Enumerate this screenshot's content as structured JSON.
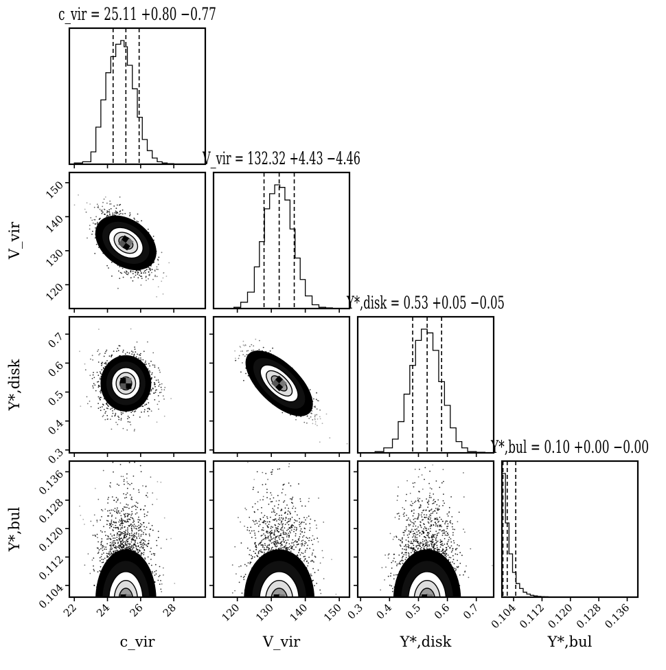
{
  "chart_data": {
    "type": "corner",
    "parameters": [
      {
        "key": "c_vir",
        "label": "c_vir",
        "title": "c_vir = 25.11 +0.80 −0.77",
        "median": 25.11,
        "err_plus": 0.8,
        "err_minus": 0.77,
        "range": [
          21.7,
          29.9
        ],
        "ticks": [
          22,
          24,
          26,
          28
        ],
        "tick_labels": [
          "22",
          "24",
          "26",
          "28"
        ],
        "quantile_lines": [
          24.34,
          25.11,
          25.91
        ],
        "hist_edges": [
          22.0,
          22.5,
          23.0,
          23.3,
          23.6,
          23.9,
          24.2,
          24.5,
          24.8,
          25.0,
          25.2,
          25.5,
          25.8,
          26.1,
          26.4,
          26.7,
          27.0,
          27.3,
          27.6,
          28.0
        ],
        "hist_heights": [
          0.01,
          0.02,
          0.1,
          0.3,
          0.52,
          0.74,
          0.87,
          0.97,
          1.0,
          0.95,
          0.8,
          0.61,
          0.38,
          0.2,
          0.11,
          0.05,
          0.02,
          0.01,
          0.005
        ]
      },
      {
        "key": "V_vir",
        "label": "V_vir",
        "title": "V_vir = 132.32 +4.43 −4.46",
        "median": 132.32,
        "err_plus": 4.43,
        "err_minus": 4.46,
        "range": [
          113,
          153
        ],
        "ticks": [
          120,
          130,
          140,
          150
        ],
        "tick_labels": [
          "120",
          "130",
          "140",
          "150"
        ],
        "quantile_lines": [
          127.86,
          132.32,
          136.75
        ],
        "hist_edges": [
          119,
          121,
          123,
          125,
          126.5,
          128,
          129.5,
          131,
          132.5,
          134,
          135.5,
          137,
          138.5,
          140,
          142,
          144,
          146,
          148
        ],
        "hist_heights": [
          0.01,
          0.05,
          0.13,
          0.33,
          0.53,
          0.79,
          0.91,
          0.98,
          0.96,
          0.86,
          0.63,
          0.4,
          0.23,
          0.1,
          0.03,
          0.01,
          0.005
        ]
      },
      {
        "key": "Y_disk",
        "label": "Υ*,disk",
        "title": "Υ*,disk = 0.53 +0.05 −0.05",
        "median": 0.53,
        "err_plus": 0.05,
        "err_minus": 0.05,
        "range": [
          0.29,
          0.76
        ],
        "ticks": [
          0.3,
          0.4,
          0.5,
          0.6,
          0.7
        ],
        "tick_labels": [
          "0.3",
          "0.4",
          "0.5",
          "0.6",
          "0.7"
        ],
        "quantile_lines": [
          0.48,
          0.53,
          0.58
        ],
        "hist_edges": [
          0.35,
          0.38,
          0.41,
          0.43,
          0.45,
          0.47,
          0.49,
          0.51,
          0.53,
          0.55,
          0.57,
          0.59,
          0.61,
          0.63,
          0.65,
          0.67,
          0.7,
          0.73
        ],
        "hist_heights": [
          0.01,
          0.04,
          0.11,
          0.25,
          0.47,
          0.7,
          0.9,
          0.99,
          0.96,
          0.82,
          0.57,
          0.38,
          0.2,
          0.09,
          0.04,
          0.01,
          0.005
        ]
      },
      {
        "key": "Y_bul",
        "label": "Υ*,bul",
        "title": "Υ*,bul = 0.10 +0.00 −0.00",
        "median": 0.1,
        "err_plus": 0.0,
        "err_minus": 0.0,
        "range": [
          0.1007,
          0.139
        ],
        "ticks": [
          0.104,
          0.112,
          0.12,
          0.128,
          0.136
        ],
        "tick_labels": [
          "0.104",
          "0.112",
          "0.120",
          "0.128",
          "0.136"
        ],
        "quantile_lines": [
          0.101,
          0.1022,
          0.1046
        ],
        "hist_edges": [
          0.1007,
          0.1017,
          0.1027,
          0.1037,
          0.1047,
          0.1057,
          0.1067,
          0.1077,
          0.1087,
          0.1097,
          0.1107,
          0.1117,
          0.1127,
          0.1137,
          0.1157,
          0.1187
        ],
        "hist_heights": [
          1.0,
          0.6,
          0.35,
          0.2,
          0.11,
          0.07,
          0.04,
          0.025,
          0.015,
          0.01,
          0.006,
          0.004,
          0.003,
          0.002,
          0.001
        ]
      }
    ],
    "correlations": {
      "1_0": -0.6,
      "2_0": 0.0,
      "2_1": -0.8,
      "3_0": 0.0,
      "3_1": 0.0,
      "3_2": 0.0
    },
    "contour_levels": [
      0.5,
      1.0,
      1.5,
      2.0
    ],
    "colors": {
      "density": "#000000",
      "background": "#ffffff"
    }
  }
}
